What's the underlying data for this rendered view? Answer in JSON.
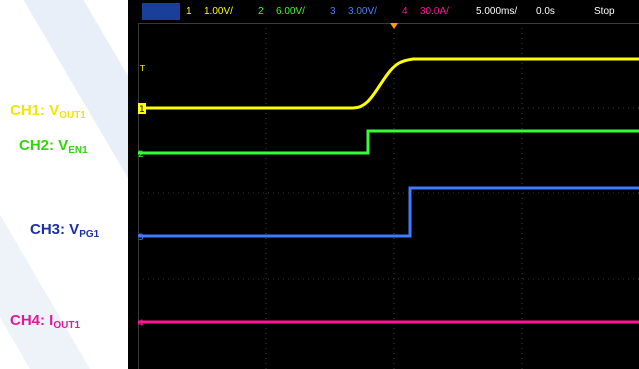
{
  "status_bar": {
    "ch1_num": "1",
    "ch1_scale": "1.00V/",
    "ch2_num": "2",
    "ch2_scale": "6.00V/",
    "ch3_num": "3",
    "ch3_scale": "3.00V/",
    "ch4_num": "4",
    "ch4_scale": "30.0A/",
    "timebase": "5.000ms/",
    "delay": "0.0s",
    "run_state": "Stop"
  },
  "channels": [
    {
      "main": "CH1: V",
      "sub": "OUT1",
      "color": "#f2e600"
    },
    {
      "main": "CH2: V",
      "sub": "EN1",
      "color": "#34d40e"
    },
    {
      "main": "CH3: V",
      "sub": "PG1",
      "color": "#1f2fa8"
    },
    {
      "main": "CH4: I",
      "sub": "OUT1",
      "color": "#e0189e"
    }
  ],
  "markers": {
    "ch1": "1",
    "ch2": "2",
    "ch3": "3",
    "ch4": "4",
    "trigger": "T"
  },
  "colors": {
    "ch1": "#ffff00",
    "ch2": "#33ff33",
    "ch3": "#3d7bff",
    "ch4": "#ff1493",
    "grid": "#3a3a3a",
    "background": "#000000",
    "watermark": "#e8eef7"
  }
}
